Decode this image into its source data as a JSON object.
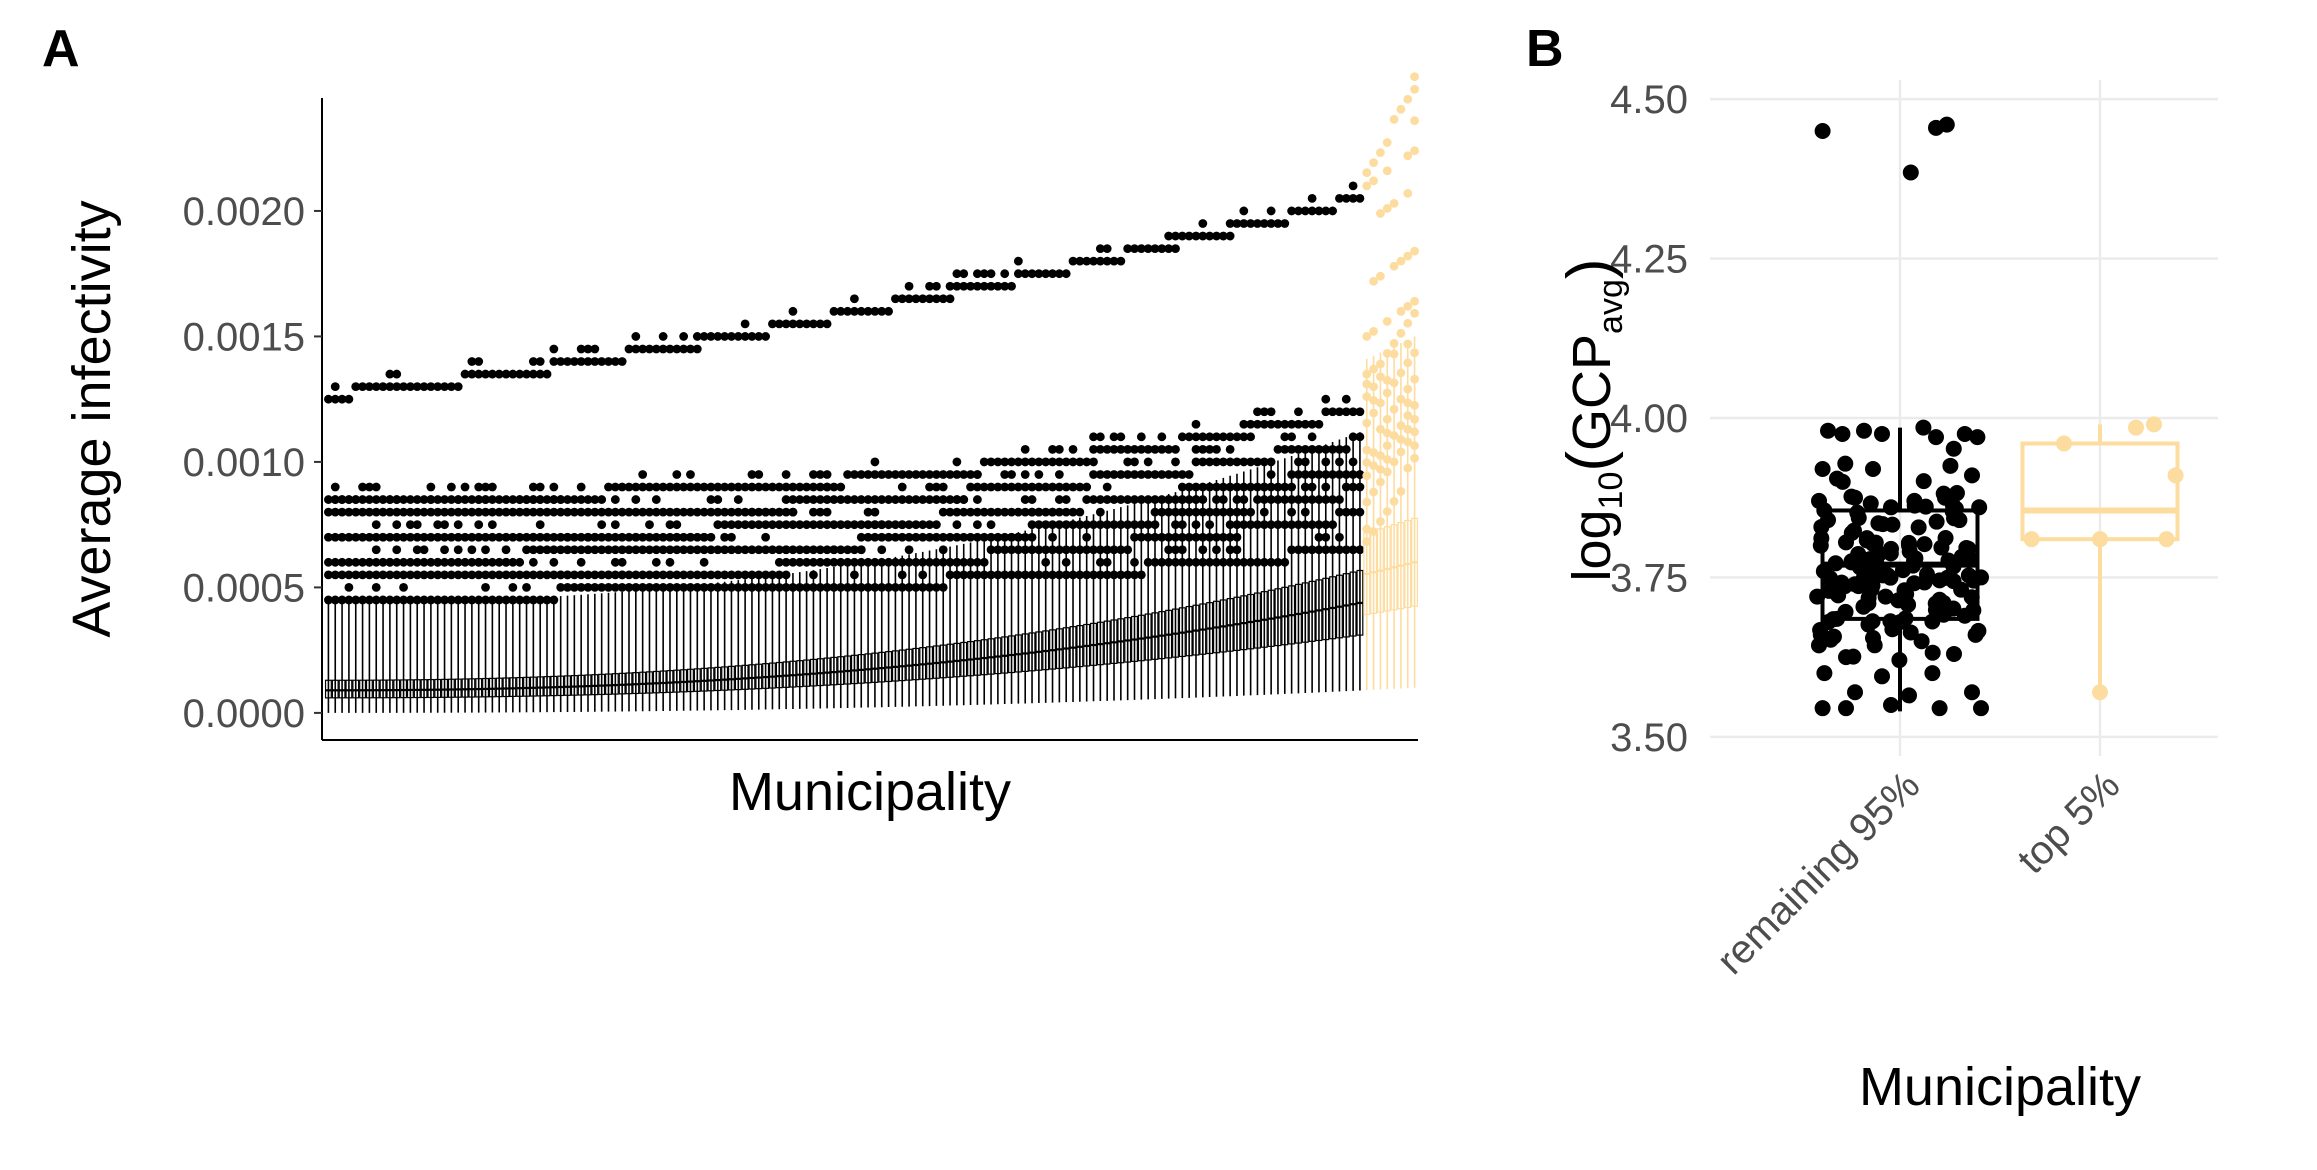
{
  "chart_data": [
    {
      "panel": "A",
      "type": "boxplot",
      "xlabel": "Municipality",
      "ylabel": "Average infectivity",
      "ylim": [
        -0.0001,
        0.00245
      ],
      "yticks": [
        "0.0000",
        "0.0005",
        "0.0010",
        "0.0015",
        "0.0020"
      ],
      "ytick_values": [
        0,
        0.0005,
        0.001,
        0.0015,
        0.002
      ],
      "grid": false,
      "n_municipalities": 160,
      "n_highlight": 8,
      "groups": [
        {
          "name": "remaining 95%",
          "color": "#000000"
        },
        {
          "name": "top 5%",
          "color": "#fddc9f"
        }
      ],
      "whisker_low": {
        "start": 0.0,
        "end": 0.0001
      },
      "q1": {
        "start": 6e-05,
        "end": 0.00034
      },
      "median": {
        "start": 9e-05,
        "end": 0.00048
      },
      "q3": {
        "start": 0.00013,
        "end": 0.00062
      },
      "whisker_high": {
        "start": 0.00044,
        "end": 0.0012
      },
      "outlier_bands": [
        {
          "start": 0.00127,
          "end": 0.0021
        },
        {
          "start": 0.00086,
          "end": 0.00125
        },
        {
          "start": 0.00078,
          "end": 0.00112
        },
        {
          "start": 0.0007,
          "end": 0.001
        },
        {
          "start": 0.00062,
          "end": 0.00092
        },
        {
          "start": 0.00054,
          "end": 0.00082
        },
        {
          "start": 0.00047,
          "end": 0.00068
        }
      ],
      "highlight_max": 0.00236
    },
    {
      "panel": "B",
      "type": "boxplot",
      "xlabel": "Municipality",
      "ylabel_parts": {
        "base": "log",
        "sub": "10",
        "inner": "GCP",
        "inner_sub": "avg"
      },
      "ylim": [
        3.47,
        4.53
      ],
      "yticks": [
        "3.50",
        "3.75",
        "4.00",
        "4.25",
        "4.50"
      ],
      "ytick_values": [
        3.5,
        3.75,
        4.0,
        4.25,
        4.5
      ],
      "categories": [
        "remaining 95%",
        "top 5%"
      ],
      "grid": true,
      "boxes": [
        {
          "category": "remaining 95%",
          "color": "#000000",
          "whisker_low": 3.54,
          "q1": 3.685,
          "median": 3.77,
          "q3": 3.855,
          "whisker_high": 3.985
        },
        {
          "category": "top 5%",
          "color": "#fddc9f",
          "whisker_low": 3.57,
          "q1": 3.81,
          "median": 3.855,
          "q3": 3.96,
          "whisker_high": 3.99
        }
      ],
      "points": {
        "remaining 95%": [
          {
            "dx": -0.43,
            "y": 4.45
          },
          {
            "dx": 0.06,
            "y": 4.385
          },
          {
            "dx": 0.2,
            "y": 4.455
          },
          {
            "dx": 0.26,
            "y": 4.46
          },
          {
            "dx": -0.4,
            "y": 3.98
          },
          {
            "dx": -0.32,
            "y": 3.975
          },
          {
            "dx": -0.2,
            "y": 3.98
          },
          {
            "dx": -0.1,
            "y": 3.975
          },
          {
            "dx": 0.13,
            "y": 3.985
          },
          {
            "dx": 0.2,
            "y": 3.97
          },
          {
            "dx": 0.36,
            "y": 3.975
          },
          {
            "dx": 0.43,
            "y": 3.97
          },
          {
            "dx": -0.43,
            "y": 3.92
          },
          {
            "dx": -0.35,
            "y": 3.905
          },
          {
            "dx": -0.15,
            "y": 3.92
          },
          {
            "dx": 0.28,
            "y": 3.925
          },
          {
            "dx": 0.4,
            "y": 3.91
          },
          {
            "dx": -0.45,
            "y": 3.87
          },
          {
            "dx": -0.25,
            "y": 3.875
          },
          {
            "dx": -0.05,
            "y": 3.86
          },
          {
            "dx": 0.08,
            "y": 3.87
          },
          {
            "dx": 0.25,
            "y": 3.875
          },
          {
            "dx": 0.44,
            "y": 3.86
          },
          {
            "dx": -0.4,
            "y": 3.84
          },
          {
            "dx": -0.12,
            "y": 3.835
          },
          {
            "dx": 0.33,
            "y": 3.84
          },
          {
            "dx": -0.44,
            "y": 3.8
          },
          {
            "dx": -0.3,
            "y": 3.805
          },
          {
            "dx": 0.05,
            "y": 3.8
          },
          {
            "dx": 0.38,
            "y": 3.795
          },
          {
            "dx": -0.2,
            "y": 3.75
          },
          {
            "dx": 0.15,
            "y": 3.755
          },
          {
            "dx": 0.45,
            "y": 3.75
          },
          {
            "dx": -0.46,
            "y": 3.72
          },
          {
            "dx": -0.08,
            "y": 3.72
          },
          {
            "dx": 0.22,
            "y": 3.715
          },
          {
            "dx": -0.35,
            "y": 3.685
          },
          {
            "dx": 0.0,
            "y": 3.68
          },
          {
            "dx": 0.36,
            "y": 3.69
          },
          {
            "dx": -0.44,
            "y": 3.66
          },
          {
            "dx": -0.15,
            "y": 3.655
          },
          {
            "dx": 0.12,
            "y": 3.65
          },
          {
            "dx": 0.42,
            "y": 3.66
          },
          {
            "dx": -0.3,
            "y": 3.625
          },
          {
            "dx": 0.3,
            "y": 3.63
          },
          {
            "dx": -0.42,
            "y": 3.6
          },
          {
            "dx": -0.1,
            "y": 3.595
          },
          {
            "dx": 0.18,
            "y": 3.6
          },
          {
            "dx": -0.25,
            "y": 3.57
          },
          {
            "dx": 0.05,
            "y": 3.565
          },
          {
            "dx": 0.4,
            "y": 3.57
          },
          {
            "dx": -0.43,
            "y": 3.545
          },
          {
            "dx": -0.3,
            "y": 3.545
          },
          {
            "dx": -0.05,
            "y": 3.55
          },
          {
            "dx": 0.22,
            "y": 3.545
          },
          {
            "dx": 0.45,
            "y": 3.545
          }
        ],
        "top 5%": [
          {
            "dx": -0.2,
            "y": 3.96
          },
          {
            "dx": 0.2,
            "y": 3.985
          },
          {
            "dx": 0.3,
            "y": 3.99
          },
          {
            "dx": 0.42,
            "y": 3.91
          },
          {
            "dx": -0.38,
            "y": 3.81
          },
          {
            "dx": 0.0,
            "y": 3.81
          },
          {
            "dx": 0.37,
            "y": 3.81
          },
          {
            "dx": 0.0,
            "y": 3.57
          }
        ]
      }
    }
  ]
}
